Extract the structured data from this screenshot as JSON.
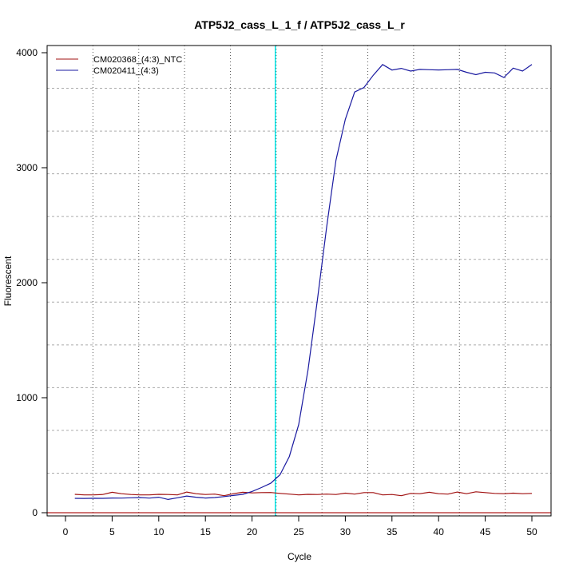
{
  "chart_data": {
    "type": "line",
    "title": "ATP5J2_cass_L_1_f / ATP5J2_cass_L_r",
    "xlabel": "Cycle",
    "ylabel": "Fluorescent",
    "xlim": [
      -2,
      52
    ],
    "ylim": [
      -30,
      4060
    ],
    "x_ticks": [
      0,
      5,
      10,
      15,
      20,
      25,
      30,
      35,
      40,
      45,
      50
    ],
    "y_ticks": [
      0,
      1000,
      2000,
      3000,
      4000
    ],
    "grid": true,
    "legend_position": "top-left",
    "threshold_cycle": 22.5,
    "baseline_value": 0,
    "colors": {
      "threshold": "#00e5e5",
      "baseline": "#b22222",
      "grid": "#999999"
    },
    "series": [
      {
        "name": "CM020368_(4:3)_NTC",
        "color": "#a01010",
        "x": [
          1,
          2,
          3,
          4,
          5,
          6,
          7,
          8,
          9,
          10,
          11,
          12,
          13,
          14,
          15,
          16,
          17,
          18,
          19,
          20,
          21,
          22,
          23,
          24,
          25,
          26,
          27,
          28,
          29,
          30,
          31,
          32,
          33,
          34,
          35,
          36,
          37,
          38,
          39,
          40,
          41,
          42,
          43,
          44,
          45,
          46,
          47,
          48,
          49,
          50
        ],
        "values": [
          160,
          155,
          155,
          158,
          178,
          165,
          158,
          155,
          155,
          160,
          158,
          155,
          180,
          165,
          158,
          162,
          148,
          165,
          178,
          172,
          175,
          176,
          168,
          162,
          155,
          160,
          158,
          162,
          158,
          170,
          162,
          175,
          175,
          155,
          158,
          148,
          168,
          165,
          178,
          165,
          162,
          180,
          165,
          182,
          175,
          168,
          165,
          170,
          165,
          168
        ]
      },
      {
        "name": "CM020411_(4:3)",
        "color": "#1a1aa0",
        "x": [
          1,
          2,
          3,
          4,
          5,
          6,
          7,
          8,
          9,
          10,
          11,
          12,
          13,
          14,
          15,
          16,
          17,
          18,
          19,
          20,
          21,
          22,
          23,
          24,
          25,
          26,
          27,
          28,
          29,
          30,
          31,
          32,
          33,
          34,
          35,
          36,
          37,
          38,
          39,
          40,
          41,
          42,
          43,
          44,
          45,
          46,
          47,
          48,
          49,
          50
        ],
        "values": [
          125,
          124,
          126,
          125,
          128,
          127,
          130,
          132,
          127,
          135,
          115,
          130,
          145,
          135,
          128,
          132,
          140,
          150,
          160,
          185,
          219,
          256,
          330,
          489,
          766,
          1242,
          1849,
          2483,
          3065,
          3421,
          3658,
          3698,
          3804,
          3897,
          3849,
          3864,
          3840,
          3855,
          3852,
          3850,
          3852,
          3855,
          3830,
          3809,
          3830,
          3824,
          3785,
          3866,
          3840,
          3897
        ]
      }
    ]
  }
}
